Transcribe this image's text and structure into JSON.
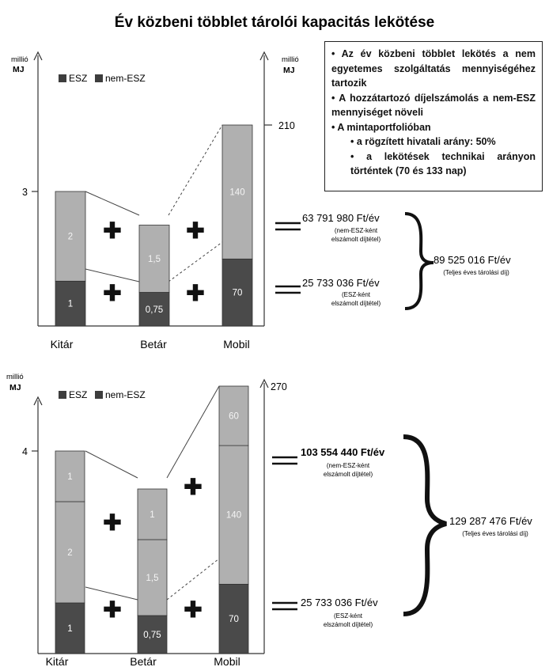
{
  "title": "Év közbeni többlet tárolói kapacitás lekötése",
  "info_box": {
    "items": [
      "• Az év közbeni többlet lekötés a nem egyetemes szolgáltatás mennyiségéhez tartozik",
      "• A hozzátartozó díjelszámolás a nem-ESZ mennyiséget növeli",
      "• A mintaportfolióban"
    ],
    "subitems": [
      "• a rögzített hivatali arány: 50%",
      "• a lekötések technikai arányon történtek (70 és 133 nap)"
    ]
  },
  "colors": {
    "esz": "#4a4a4a",
    "nem_esz": "#b0b0b0"
  },
  "chart_data": [
    {
      "type": "bar",
      "categories": [
        "Kitár",
        "Betár",
        "Mobil"
      ],
      "legend": [
        "ESZ",
        "nem-ESZ"
      ],
      "left_axis_label": [
        "millió",
        "MJ"
      ],
      "right_axis_label": [
        "millió",
        "MJ"
      ],
      "left_tick": "3",
      "right_tick": "210",
      "left_axis_max": 3,
      "right_axis_max": 210,
      "stacks": [
        {
          "category": "Kitár",
          "axis": "left",
          "segments": [
            {
              "series": "ESZ",
              "value": 1,
              "label": "1"
            },
            {
              "series": "nem-ESZ",
              "value": 2,
              "label": "2"
            }
          ]
        },
        {
          "category": "Betár",
          "axis": "left",
          "segments": [
            {
              "series": "ESZ",
              "value": 0.75,
              "label": "0,75"
            },
            {
              "series": "nem-ESZ",
              "value": 1.5,
              "label": "1,5"
            }
          ]
        },
        {
          "category": "Mobil",
          "axis": "right",
          "segments": [
            {
              "series": "ESZ",
              "value": 70,
              "label": "70"
            },
            {
              "series": "nem-ESZ",
              "value": 140,
              "label": "140"
            }
          ]
        }
      ],
      "costs": [
        {
          "amount": "63 791 980 Ft/év",
          "note": [
            "(nem-ESZ-ként",
            "elszámolt díjtétel)"
          ]
        },
        {
          "amount": "25 733 036 Ft/év",
          "note": [
            "(ESZ-ként",
            "elszámolt díjtétel)"
          ]
        }
      ],
      "total": {
        "amount": "89 525 016 Ft/év",
        "note": "(Teljes éves tárolási díj)"
      }
    },
    {
      "type": "bar",
      "categories": [
        "Kitár",
        "Betár",
        "Mobil"
      ],
      "legend": [
        "ESZ",
        "nem-ESZ"
      ],
      "left_axis_label": [
        "millió",
        "MJ"
      ],
      "left_tick": "4",
      "right_tick": "270",
      "left_axis_max": 4,
      "right_axis_max": 270,
      "stacks": [
        {
          "category": "Kitár",
          "axis": "left",
          "segments": [
            {
              "series": "ESZ",
              "value": 1,
              "label": "1"
            },
            {
              "series": "nem-ESZ",
              "value": 2,
              "label": "2"
            },
            {
              "series": "nem-ESZ",
              "value": 1,
              "label": "1"
            }
          ]
        },
        {
          "category": "Betár",
          "axis": "left",
          "segments": [
            {
              "series": "ESZ",
              "value": 0.75,
              "label": "0,75"
            },
            {
              "series": "nem-ESZ",
              "value": 1.5,
              "label": "1,5"
            },
            {
              "series": "nem-ESZ",
              "value": 1,
              "label": "1"
            }
          ]
        },
        {
          "category": "Mobil",
          "axis": "right",
          "segments": [
            {
              "series": "ESZ",
              "value": 70,
              "label": "70"
            },
            {
              "series": "nem-ESZ",
              "value": 140,
              "label": "140"
            },
            {
              "series": "nem-ESZ",
              "value": 60,
              "label": "60"
            }
          ]
        }
      ],
      "costs": [
        {
          "amount": "103 554 440 Ft/év",
          "note": [
            "(nem-ESZ-ként",
            "elszámolt díjtétel)"
          ]
        },
        {
          "amount": "25 733 036 Ft/év",
          "note": [
            "(ESZ-ként",
            "elszámolt díjtétel)"
          ]
        }
      ],
      "total": {
        "amount": "129 287 476 Ft/év",
        "note": "(Teljes éves tárolási díj)"
      }
    }
  ]
}
